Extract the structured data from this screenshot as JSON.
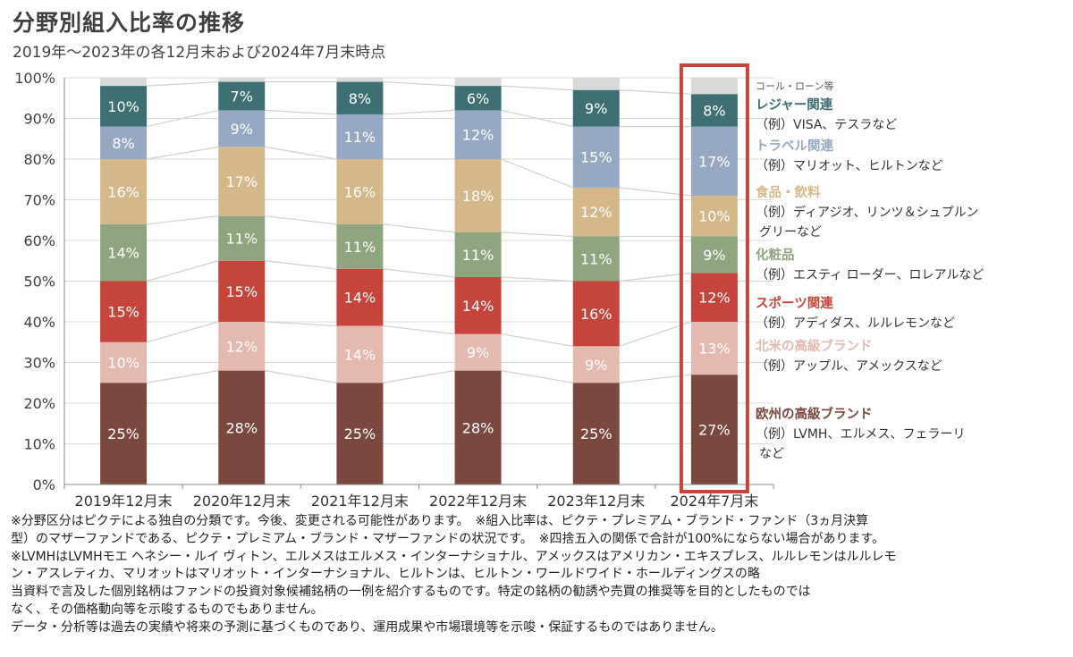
{
  "title": "分野別組入比率の推移",
  "subtitle": "2019年～2023年の各12月末および2024年7月末時点",
  "chart_data": {
    "type": "bar",
    "stacked": true,
    "title": "分野別組入比率の推移",
    "subtitle": "2019年～2023年の各12月末および2024年7月末時点",
    "xlabel": "",
    "ylabel": "",
    "ylim": [
      0,
      100
    ],
    "yticks": [
      "0%",
      "10%",
      "20%",
      "30%",
      "40%",
      "50%",
      "60%",
      "70%",
      "80%",
      "90%",
      "100%"
    ],
    "grid": true,
    "highlight_category": "2024年7月末",
    "categories": [
      "2019年12月末",
      "2020年12月末",
      "2021年12月末",
      "2022年12月末",
      "2023年12月末",
      "2024年7月末"
    ],
    "series": [
      {
        "name": "欧州の高級ブランド",
        "color": "#7b4840",
        "values": [
          25,
          28,
          25,
          28,
          25,
          27
        ],
        "labels": [
          "25%",
          "28%",
          "25%",
          "28%",
          "25%",
          "27%"
        ]
      },
      {
        "name": "北米の高級ブランド",
        "color": "#e3b9b0",
        "values": [
          10,
          12,
          14,
          9,
          9,
          13
        ],
        "labels": [
          "10%",
          "12%",
          "14%",
          "9%",
          "9%",
          "13%"
        ]
      },
      {
        "name": "スポーツ関連",
        "color": "#c5443b",
        "values": [
          15,
          15,
          14,
          14,
          16,
          12
        ],
        "labels": [
          "15%",
          "15%",
          "14%",
          "14%",
          "16%",
          "12%"
        ]
      },
      {
        "name": "化粧品",
        "color": "#8fa57f",
        "values": [
          14,
          11,
          11,
          11,
          11,
          9
        ],
        "labels": [
          "14%",
          "11%",
          "11%",
          "11%",
          "11%",
          "9%"
        ]
      },
      {
        "name": "食品・飲料",
        "color": "#d4b88a",
        "values": [
          16,
          17,
          16,
          18,
          12,
          10
        ],
        "labels": [
          "16%",
          "17%",
          "16%",
          "18%",
          "12%",
          "10%"
        ]
      },
      {
        "name": "トラベル関連",
        "color": "#97a9c2",
        "values": [
          8,
          9,
          11,
          12,
          15,
          17
        ],
        "labels": [
          "8%",
          "9%",
          "11%",
          "12%",
          "15%",
          "17%"
        ]
      },
      {
        "name": "レジャー関連",
        "color": "#3e6f72",
        "values": [
          10,
          7,
          8,
          6,
          9,
          8
        ],
        "labels": [
          "10%",
          "7%",
          "8%",
          "6%",
          "9%",
          "8%"
        ]
      },
      {
        "name": "コール・ローン等",
        "color": "#d9d9d9",
        "values": [
          2,
          1,
          1,
          2,
          3,
          4
        ],
        "labels": [
          "",
          "",
          "",
          "",
          "",
          ""
        ]
      }
    ]
  },
  "legend": [
    {
      "name": "コール・ローン等",
      "example": "",
      "color": "#555555",
      "small": true
    },
    {
      "name": "レジャー関連",
      "example": "（例）VISA、テスラなど",
      "color": "#3e6f72"
    },
    {
      "name": "トラベル関連",
      "example": "（例）マリオット、ヒルトンなど",
      "color": "#97a9c2"
    },
    {
      "name": "食品・飲料",
      "example": "（例）ディアジオ、リンツ＆シュプルン",
      "example2": "グリーなど",
      "color": "#d4b88a"
    },
    {
      "name": "化粧品",
      "example": "（例）エスティ ローダー、ロレアルなど",
      "color": "#8fa57f"
    },
    {
      "name": "スポーツ関連",
      "example": "（例）アディダス、ルルレモンなど",
      "color": "#c5443b"
    },
    {
      "name": "北米の高級ブランド",
      "example": "（例）アップル、アメックスなど",
      "color": "#e3b9b0"
    },
    {
      "name": "欧州の高級ブランド",
      "example": "（例）LVMH、エルメス、フェラーリ",
      "example2": "など",
      "color": "#7b4840"
    }
  ],
  "colors": {
    "highlight_box": "#c5443b",
    "grid": "#d9d9d9",
    "connector": "#d0d0d0",
    "axis": "#888888"
  },
  "notes": [
    "※分野区分はピクテによる独自の分類です。今後、変更される可能性があります。　※組入比率は、ピクテ・プレミアム・ブランド・ファンド（3ヵ月決算",
    "型）のマザーファンドである、ピクテ・プレミアム・ブランド・マザーファンドの状況です。　※四捨五入の関係で合計が100%にならない場合があります。",
    "※LVMHはLVMHモエ ヘネシー・ルイ ヴィトン、エルメスはエルメス・インターナショナル、アメックスはアメリカン・エキスプレス、ルルレモンはルルレモ",
    "ン・アスレティカ、マリオットはマリオット・インターナショナル、ヒルトンは、ヒルトン・ワールドワイド・ホールディングスの略",
    "当資料で言及した個別銘柄はファンドの投資対象候補銘柄の一例を紹介するものです。特定の銘柄の勧誘や売買の推奨等を目的としたものでは",
    "なく、その価格動向等を示唆するものでもありません。",
    "データ・分析等は過去の実績や将来の予測に基づくものであり、運用成果や市場環境等を示唆・保証するものではありません。"
  ]
}
